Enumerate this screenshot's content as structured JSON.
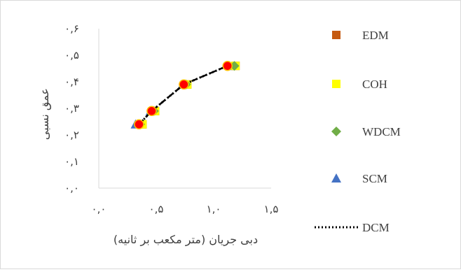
{
  "chart_data": {
    "type": "scatter",
    "title": "",
    "xlabel": "دبی جریان (متر مکعب بر ثانیه)",
    "ylabel": "عمق نسبی",
    "xlim": [
      0,
      1.5
    ],
    "ylim": [
      0,
      0.6
    ],
    "x_ticks": [
      0,
      0.5,
      1.0,
      1.5
    ],
    "x_tick_labels": [
      "۰,۰",
      "۰,۵",
      "۱,۰",
      "۱,۵"
    ],
    "y_ticks": [
      0,
      0.1,
      0.2,
      0.3,
      0.4,
      0.5,
      0.6
    ],
    "y_tick_labels": [
      "۰,۰",
      "۰,۱",
      "۰,۲",
      "۰,۳",
      "۰,۴",
      "۰,۵",
      "۰,۶"
    ],
    "grid": false,
    "legend_position": "right",
    "series": [
      {
        "name": "EDM",
        "marker": "square",
        "color": "#c55a11",
        "x": [
          0.38,
          0.49,
          0.77,
          1.19
        ],
        "y": [
          0.24,
          0.29,
          0.39,
          0.46
        ]
      },
      {
        "name": "COH",
        "marker": "square",
        "color": "#ffff00",
        "x": [
          0.38,
          0.49,
          0.77,
          1.19
        ],
        "y": [
          0.24,
          0.29,
          0.39,
          0.46
        ]
      },
      {
        "name": "WDCM",
        "marker": "diamond",
        "color": "#70ad47",
        "x": [
          0.36,
          0.48,
          0.76,
          1.18
        ],
        "y": [
          0.24,
          0.29,
          0.39,
          0.46
        ]
      },
      {
        "name": "SCM",
        "marker": "triangle",
        "color": "#4472c4",
        "x": [
          0.32,
          0.45,
          0.73,
          1.14
        ],
        "y": [
          0.24,
          0.29,
          0.39,
          0.46
        ]
      },
      {
        "name": "DCM",
        "marker": "dotted-line",
        "color": "#000000",
        "x": [
          0.35,
          0.46,
          0.74,
          1.12
        ],
        "y": [
          0.24,
          0.29,
          0.39,
          0.46
        ]
      }
    ],
    "overlay": [
      {
        "style": "dashed-line",
        "color": "#000000",
        "x": [
          0.35,
          0.46,
          0.74,
          1.12
        ],
        "y": [
          0.24,
          0.29,
          0.39,
          0.46
        ]
      },
      {
        "style": "circle",
        "color": "#ff0000",
        "stroke": "#ffc000",
        "x": [
          0.35,
          0.46,
          0.74,
          1.12
        ],
        "y": [
          0.24,
          0.29,
          0.39,
          0.46
        ]
      }
    ]
  }
}
